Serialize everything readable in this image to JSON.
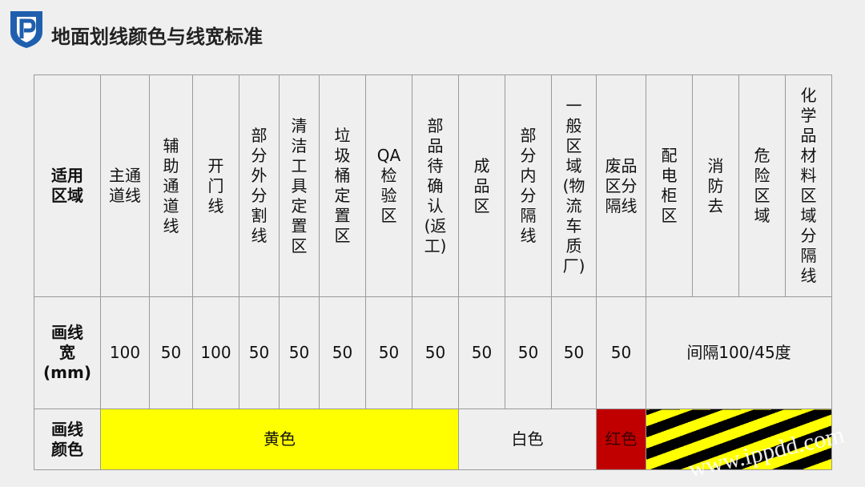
{
  "title": "地面划线颜色与线宽标准",
  "watermark": "www.ippdd.com",
  "row_labels": {
    "area": "适用\n区域",
    "width": "画线\n宽\n(mm)",
    "color": "画线\n颜色"
  },
  "areas": [
    "主通\n道线",
    "辅\n助\n通\n道\n线",
    "开\n门\n线",
    "部\n分\n外\n分\n割\n线",
    "清\n洁\n工\n具\n定\n置\n区",
    "垃\n圾\n桶\n定\n置\n区",
    "QA\n检\n验\n区",
    "部\n品\n待\n确\n认\n(返\n工)",
    "成\n品\n区",
    "部\n分\n内\n分\n隔\n线",
    "一\n般\n区\n域\n(物\n流\n车\n质\n厂)",
    "废品\n区分\n隔线",
    "配\n电\n柜\n区",
    "消\n防\n去",
    "危\n险\n区\n域",
    "化\n学\n品\n材\n料\n区\n域\n分\n隔\n线"
  ],
  "widths": [
    "100",
    "50",
    "100",
    "50",
    "50",
    "50",
    "50",
    "50",
    "50",
    "50",
    "50",
    "50"
  ],
  "widths_merged": "间隔100/45度",
  "colors": {
    "yellow": "黄色",
    "white": "白色",
    "red": "红色"
  },
  "color_hex": {
    "yellow": "#ffff00",
    "red": "#c00000",
    "stripe_dark": "#000000",
    "logo": "#1f5fae"
  }
}
